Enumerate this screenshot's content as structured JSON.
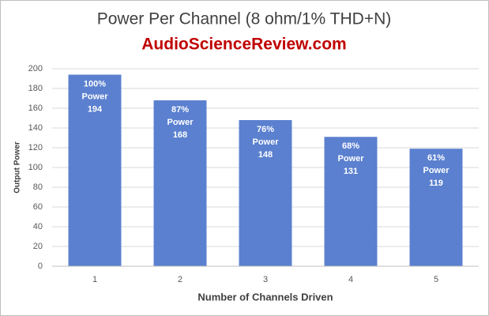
{
  "chart_data": {
    "type": "bar",
    "title": "Power Per Channel (8 ohm/1% THD+N)",
    "subtitle": "AudioScienceReview.com",
    "x_label": "Number of Channels Driven",
    "y_label": "Output Power",
    "categories": [
      "1",
      "2",
      "3",
      "4",
      "5"
    ],
    "values": [
      194,
      168,
      148,
      131,
      119
    ],
    "share_labels": [
      "100%",
      "87%",
      "76%",
      "68%",
      "61%"
    ],
    "label_word": "Power",
    "color": "#5b80cf",
    "ylim": [
      0,
      200
    ],
    "yticks": [
      0,
      20,
      40,
      60,
      80,
      100,
      120,
      140,
      160,
      180,
      200
    ],
    "grid": true
  }
}
